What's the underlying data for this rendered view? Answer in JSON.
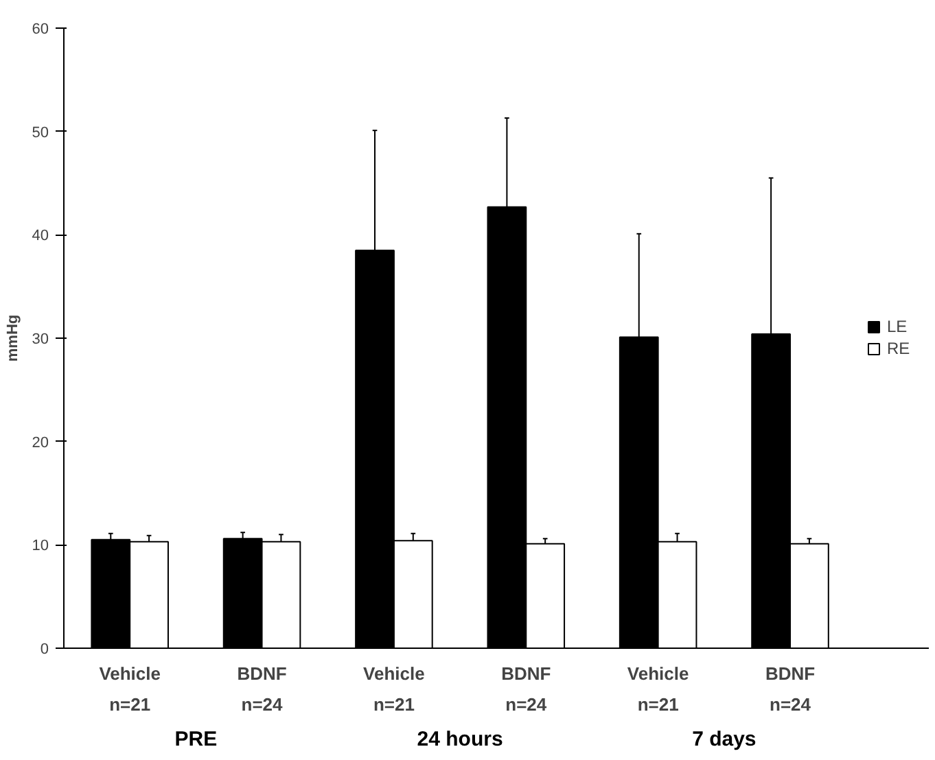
{
  "chart_data": {
    "type": "bar",
    "ylabel": "mmHg",
    "categories": [
      "Vehicle\nn=21",
      "BDNF\nn=24",
      "Vehicle\nn=21",
      "BDNF\nn=24",
      "Vehicle\nn=21",
      "BDNF\nn=24"
    ],
    "annotations": [
      "PRE",
      "24 hours",
      "7 days"
    ],
    "series": [
      {
        "name": "LE",
        "color": "#000000",
        "values": [
          10.5,
          10.6,
          38.5,
          42.7,
          30.1,
          30.4
        ],
        "errors": [
          [
            10.5,
            11.1
          ],
          [
            10.6,
            11.2
          ],
          [
            38.5,
            50.1
          ],
          [
            42.7,
            51.3
          ],
          [
            30.1,
            40.1
          ],
          [
            30.4,
            45.5
          ]
        ]
      },
      {
        "name": "RE",
        "color": "#ffffff",
        "values": [
          10.3,
          10.3,
          10.4,
          10.1,
          10.3,
          10.1
        ],
        "errors": [
          [
            10.3,
            10.9
          ],
          [
            10.3,
            11.0
          ],
          [
            10.4,
            11.1
          ],
          [
            10.1,
            10.6
          ],
          [
            10.3,
            11.1
          ],
          [
            10.1,
            10.6
          ]
        ]
      }
    ],
    "ylim": [
      0,
      60
    ],
    "yticks": [
      0,
      10,
      20,
      30,
      40,
      50,
      60
    ],
    "grid": false,
    "legend": "right"
  }
}
